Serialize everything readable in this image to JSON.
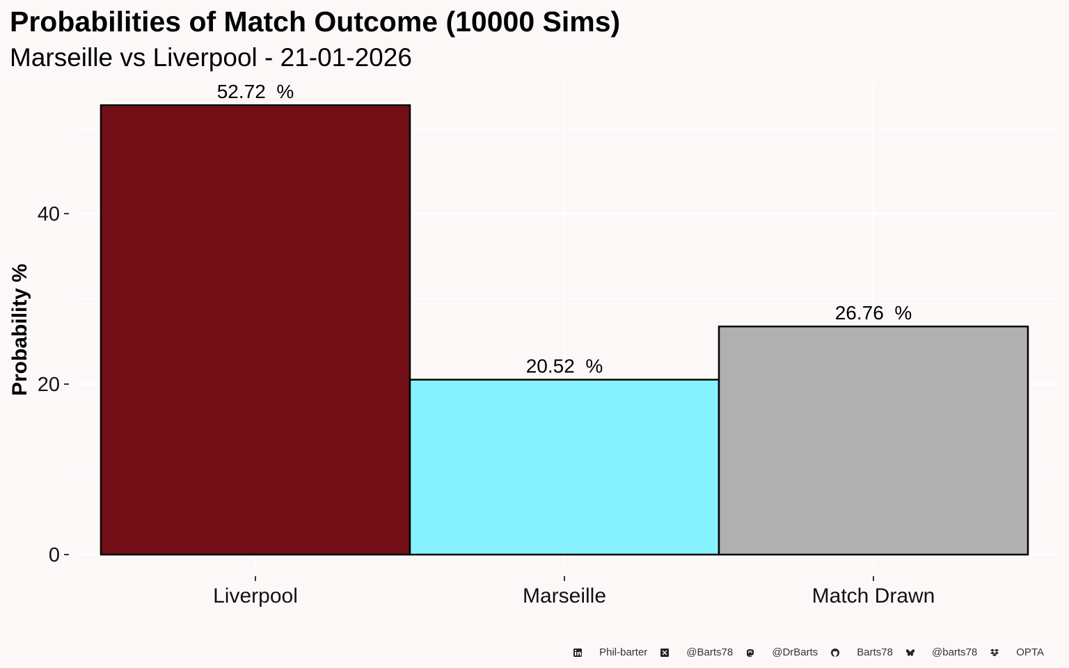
{
  "title": "Probabilities of Match Outcome (10000 Sims)",
  "subtitle": "Marseille vs Liverpool - 21-01-2026",
  "chart_data": {
    "type": "bar",
    "categories": [
      "Liverpool",
      "Marseille",
      "Match Drawn"
    ],
    "values": [
      52.72,
      20.52,
      26.76
    ],
    "data_labels": [
      "52.72  %",
      "20.52  %",
      "26.76  %"
    ],
    "colors": [
      "#730e17",
      "#87f2ff",
      "#b0b0b0"
    ],
    "ylabel": "Probability %",
    "xlabel": "",
    "yticks": [
      0,
      20,
      40
    ],
    "ylim": [
      0,
      55
    ],
    "grid": true,
    "legend": "none"
  },
  "caption": [
    {
      "icon": "linkedin-icon",
      "label": "Phil-barter"
    },
    {
      "icon": "x-twitter-icon",
      "label": "@Barts78"
    },
    {
      "icon": "mastodon-icon",
      "label": "@DrBarts"
    },
    {
      "icon": "github-icon",
      "label": "Barts78"
    },
    {
      "icon": "bluesky-icon",
      "label": "@barts78"
    },
    {
      "icon": "dropbox-icon",
      "label": "OPTA"
    }
  ]
}
